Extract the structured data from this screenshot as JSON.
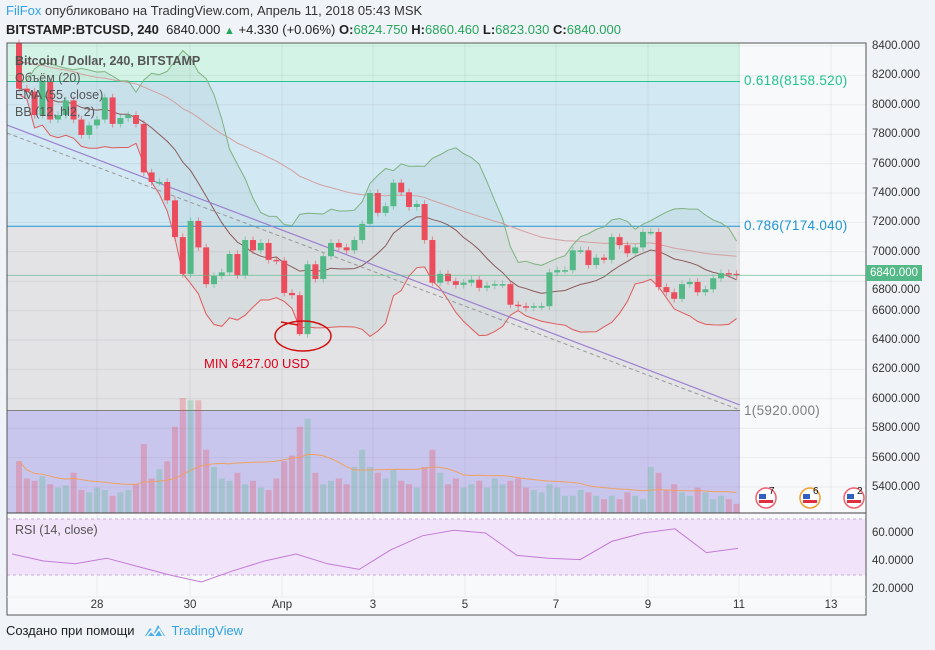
{
  "header": {
    "author": "FilFox",
    "published": "опубликовано на TradingView.com, Апрель 11, 2018 05:43 MSK",
    "symbol": "BITSTAMP:BTCUSD, 240",
    "last": "6840.000",
    "change": "+4.330 (+0.06%)",
    "o_label": "O:",
    "o": "6824.750",
    "h_label": "H:",
    "h": "6860.460",
    "l_label": "L:",
    "l": "6823.030",
    "c_label": "C:",
    "c": "6840.000"
  },
  "legend": [
    "Bitcoin / Dollar, 240, BITSTAMP",
    "Объём (20)",
    "EMA (55, close)",
    "BB (12, hl2, 2)"
  ],
  "annotation": "MIN 6427.00 USD",
  "fib_levels": [
    {
      "label": "0.618(8158.520)",
      "price": 8158.52,
      "color": "#22c38e"
    },
    {
      "label": "0.786(7174.040)",
      "price": 7174.04,
      "color": "#2196d3"
    },
    {
      "label": "1(5920.000)",
      "price": 5920,
      "color": "#808080"
    }
  ],
  "price_axis": [
    "8400.000",
    "8200.000",
    "8000.000",
    "7800.000",
    "7600.000",
    "7400.000",
    "7200.000",
    "7000.000",
    "6800.000",
    "6600.000",
    "6400.000",
    "6200.000",
    "6000.000",
    "5800.000",
    "5600.000",
    "5400.000"
  ],
  "current_price": {
    "label": "6840.000",
    "value": 6840,
    "color": "#53b987"
  },
  "rsi": {
    "label": "RSI (14, close)",
    "axis": [
      "60.0000",
      "40.0000",
      "20.0000"
    ],
    "band": [
      30,
      70
    ],
    "values": [
      45,
      40,
      38,
      42,
      36,
      30,
      25,
      33,
      40,
      45,
      38,
      34,
      48,
      58,
      62,
      60,
      44,
      42,
      41,
      54,
      60,
      63,
      46,
      49
    ]
  },
  "x_axis": [
    "28",
    "30",
    "Апр",
    "3",
    "5",
    "7",
    "9",
    "11",
    "13"
  ],
  "events": [
    {
      "count": "7"
    },
    {
      "count": "6"
    },
    {
      "count": "2"
    }
  ],
  "footer": {
    "created": "Создано при помощи",
    "brand": "TradingView"
  },
  "colors": {
    "up": "#53b987",
    "down": "#eb4d5c",
    "bb_upper": "#7fb27f",
    "bb_lower": "#e05a5a",
    "bb_mid": "#8a5a5a",
    "ema": "#d4a0a0",
    "trend": "#9b7fd0",
    "volume_ma": "#f0a060"
  },
  "chart_data": {
    "type": "candlestick",
    "timeframe": "240",
    "first_open": 8420,
    "min_low": 6427,
    "closes": [
      8110,
      8090,
      7930,
      8155,
      7900,
      7930,
      8030,
      7900,
      7795,
      7860,
      7900,
      8050,
      7870,
      7910,
      7930,
      7870,
      7540,
      7475,
      7475,
      7350,
      7100,
      6850,
      7210,
      7030,
      6780,
      6835,
      6860,
      6985,
      6840,
      7080,
      7010,
      7060,
      6945,
      6940,
      6720,
      6705,
      6440,
      6915,
      6815,
      6970,
      7060,
      7030,
      7010,
      7080,
      7190,
      7400,
      7265,
      7310,
      7470,
      7405,
      7305,
      7325,
      7080,
      6790,
      6850,
      6800,
      6775,
      6790,
      6810,
      6755,
      6770,
      6780,
      6780,
      6640,
      6630,
      6620,
      6630,
      6630,
      6860,
      6875,
      6875,
      7010,
      7010,
      6910,
      6960,
      6945,
      7100,
      7045,
      6990,
      7030,
      7135,
      7135,
      6760,
      6725,
      6680,
      6780,
      6795,
      6725,
      6745,
      6820,
      6855,
      6850,
      6840
    ],
    "volume_relative": [
      45,
      30,
      28,
      32,
      25,
      22,
      24,
      35,
      20,
      18,
      22,
      20,
      15,
      18,
      20,
      25,
      60,
      30,
      38,
      45,
      75,
      100,
      98,
      98,
      55,
      40,
      30,
      28,
      35,
      25,
      28,
      22,
      20,
      30,
      45,
      50,
      75,
      82,
      35,
      25,
      28,
      30,
      25,
      40,
      55,
      40,
      35,
      30,
      38,
      28,
      25,
      22,
      40,
      55,
      35,
      25,
      30,
      22,
      25,
      28,
      22,
      30,
      25,
      28,
      30,
      22,
      20,
      18,
      25,
      22,
      15,
      15,
      20,
      18,
      15,
      12,
      15,
      12,
      18,
      15,
      12,
      40,
      35,
      20,
      25,
      18,
      15,
      22,
      18,
      12,
      15,
      12,
      8
    ],
    "ylim": [
      5250,
      8420
    ]
  }
}
